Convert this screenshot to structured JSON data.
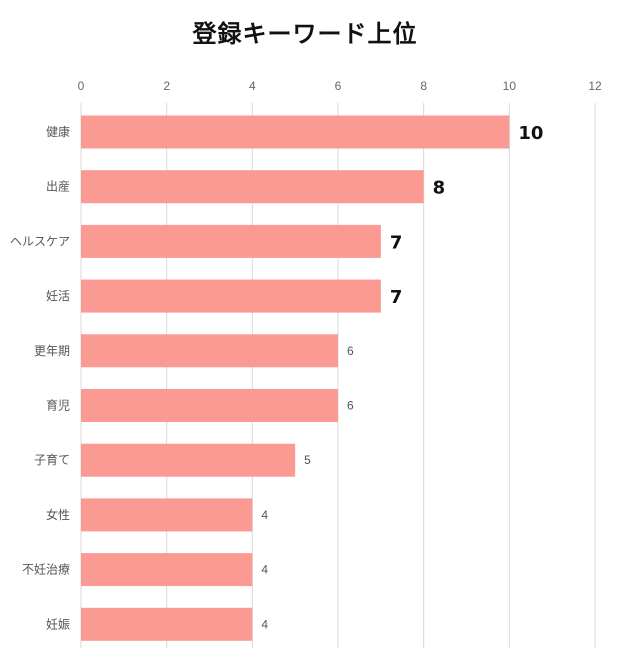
{
  "chart_data": {
    "type": "bar",
    "orientation": "horizontal",
    "title": "登録キーワード上位",
    "xlabel": "",
    "ylabel": "",
    "xlim": [
      0,
      12
    ],
    "xticks": [
      "0",
      "2",
      "4",
      "6",
      "8",
      "10",
      "12"
    ],
    "grid": true,
    "legend": "none",
    "categories": [
      "健康",
      "出産",
      "ヘルスケア",
      "妊活",
      "更年期",
      "育児",
      "子育て",
      "女性",
      "不妊治療",
      "妊娠"
    ],
    "values": [
      10,
      8,
      7,
      7,
      6,
      6,
      5,
      4,
      4,
      4
    ],
    "data_labels": [
      "10",
      "8",
      "7",
      "7",
      "6",
      "6",
      "5",
      "4",
      "4",
      "4"
    ],
    "bar_color": "#fa9a93",
    "grid_color": "#d9d9d9"
  }
}
